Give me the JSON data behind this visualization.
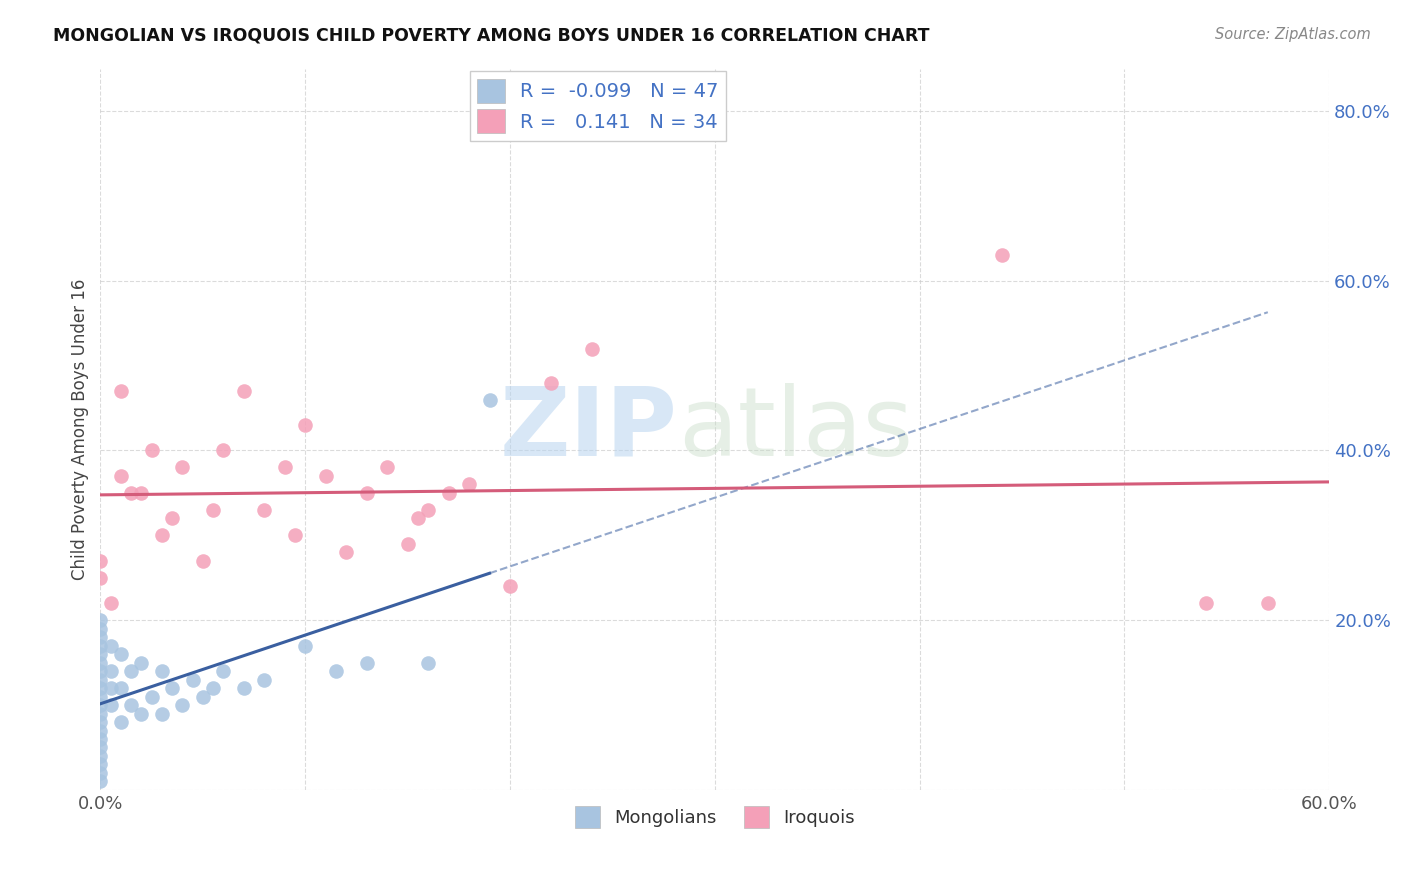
{
  "title": "MONGOLIAN VS IROQUOIS CHILD POVERTY AMONG BOYS UNDER 16 CORRELATION CHART",
  "source": "Source: ZipAtlas.com",
  "ylabel": "Child Poverty Among Boys Under 16",
  "xlim": [
    0.0,
    0.6
  ],
  "ylim": [
    0.0,
    0.85
  ],
  "xticks": [
    0.0,
    0.1,
    0.2,
    0.3,
    0.4,
    0.5,
    0.6
  ],
  "xticklabels": [
    "0.0%",
    "",
    "",
    "",
    "",
    "",
    "60.0%"
  ],
  "yticks": [
    0.0,
    0.2,
    0.4,
    0.6,
    0.8
  ],
  "yticklabels": [
    "",
    "20.0%",
    "40.0%",
    "60.0%",
    "80.0%"
  ],
  "mongolians_R": -0.099,
  "mongolians_N": 47,
  "iroquois_R": 0.141,
  "iroquois_N": 34,
  "mongolian_color": "#a8c4e0",
  "iroquois_color": "#f4a0b8",
  "trend_mongolian_color": "#3a5fa0",
  "trend_iroquois_color": "#d45c7a",
  "legend_text_color": "#4472c4",
  "watermark_color": "#c8dff0",
  "background_color": "#ffffff",
  "grid_color": "#cccccc",
  "mongolians_x": [
    0.0,
    0.0,
    0.0,
    0.0,
    0.0,
    0.0,
    0.0,
    0.0,
    0.0,
    0.0,
    0.0,
    0.0,
    0.0,
    0.0,
    0.0,
    0.0,
    0.0,
    0.0,
    0.0,
    0.0,
    0.005,
    0.005,
    0.005,
    0.005,
    0.01,
    0.01,
    0.01,
    0.015,
    0.015,
    0.02,
    0.02,
    0.025,
    0.03,
    0.03,
    0.035,
    0.04,
    0.045,
    0.05,
    0.055,
    0.06,
    0.07,
    0.08,
    0.1,
    0.115,
    0.13,
    0.16,
    0.19
  ],
  "mongolians_y": [
    0.01,
    0.02,
    0.03,
    0.04,
    0.05,
    0.06,
    0.07,
    0.08,
    0.09,
    0.1,
    0.11,
    0.12,
    0.13,
    0.14,
    0.15,
    0.16,
    0.17,
    0.18,
    0.19,
    0.2,
    0.1,
    0.12,
    0.14,
    0.17,
    0.08,
    0.12,
    0.16,
    0.1,
    0.14,
    0.09,
    0.15,
    0.11,
    0.09,
    0.14,
    0.12,
    0.1,
    0.13,
    0.11,
    0.12,
    0.14,
    0.12,
    0.13,
    0.17,
    0.14,
    0.15,
    0.15,
    0.46
  ],
  "iroquois_x": [
    0.0,
    0.0,
    0.005,
    0.01,
    0.01,
    0.015,
    0.02,
    0.025,
    0.03,
    0.035,
    0.04,
    0.05,
    0.055,
    0.06,
    0.07,
    0.08,
    0.09,
    0.095,
    0.1,
    0.11,
    0.12,
    0.13,
    0.14,
    0.15,
    0.155,
    0.16,
    0.17,
    0.18,
    0.2,
    0.22,
    0.24,
    0.44,
    0.54,
    0.57
  ],
  "iroquois_y": [
    0.25,
    0.27,
    0.22,
    0.37,
    0.47,
    0.35,
    0.35,
    0.4,
    0.3,
    0.32,
    0.38,
    0.27,
    0.33,
    0.4,
    0.47,
    0.33,
    0.38,
    0.3,
    0.43,
    0.37,
    0.28,
    0.35,
    0.38,
    0.29,
    0.32,
    0.33,
    0.35,
    0.36,
    0.24,
    0.48,
    0.52,
    0.63,
    0.22,
    0.22
  ]
}
